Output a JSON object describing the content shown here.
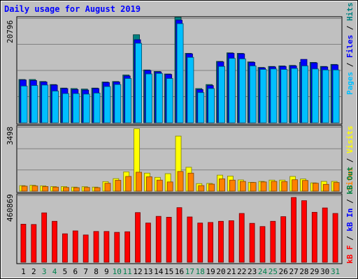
{
  "chart_data": [
    {
      "type": "bar",
      "title": "Daily usage for August 2019",
      "categories": [
        "1",
        "2",
        "3",
        "4",
        "5",
        "6",
        "7",
        "8",
        "9",
        "10",
        "11",
        "12",
        "13",
        "14",
        "15",
        "16",
        "17",
        "18",
        "19",
        "20",
        "21",
        "22",
        "23",
        "24",
        "25",
        "26",
        "27",
        "28",
        "29",
        "30",
        "31"
      ],
      "weekend_days": [
        "3",
        "4",
        "10",
        "11",
        "17",
        "18",
        "24",
        "25",
        "31"
      ],
      "y_max_label": "20796",
      "ylim": [
        0,
        20796
      ],
      "series": [
        {
          "name": "Hits",
          "color": "#008080",
          "values": [
            8600,
            8600,
            8200,
            7600,
            6900,
            6800,
            6700,
            6900,
            8100,
            8200,
            9500,
            17500,
            10500,
            10200,
            9700,
            21000,
            13800,
            6800,
            7600,
            12200,
            13900,
            13800,
            12100,
            11000,
            11200,
            11300,
            11400,
            12000,
            12000,
            11200,
            11600
          ]
        },
        {
          "name": "Files",
          "color": "#0000ff",
          "values": [
            8500,
            8400,
            8100,
            7500,
            6800,
            6600,
            6500,
            6800,
            8000,
            8100,
            9300,
            16500,
            10400,
            10100,
            9600,
            20400,
            13700,
            6600,
            7400,
            12100,
            13800,
            13700,
            12000,
            10900,
            11100,
            11200,
            11300,
            12600,
            11900,
            11100,
            11500
          ]
        },
        {
          "name": "Pages",
          "color": "#00bfff",
          "values": [
            7300,
            7400,
            7500,
            6300,
            5800,
            5800,
            5700,
            5900,
            7200,
            7600,
            8800,
            15800,
            9700,
            9800,
            8800,
            19700,
            13000,
            6000,
            6800,
            11200,
            12800,
            12700,
            11300,
            10600,
            10700,
            10600,
            10800,
            11300,
            10700,
            10500,
            10500
          ]
        }
      ]
    },
    {
      "type": "bar",
      "categories": [
        "1",
        "2",
        "3",
        "4",
        "5",
        "6",
        "7",
        "8",
        "9",
        "10",
        "11",
        "12",
        "13",
        "14",
        "15",
        "16",
        "17",
        "18",
        "19",
        "20",
        "21",
        "22",
        "23",
        "24",
        "25",
        "26",
        "27",
        "28",
        "29",
        "30",
        "31"
      ],
      "y_max_label": "3498",
      "ylim": [
        0,
        3498
      ],
      "series": [
        {
          "name": "Visits",
          "color": "#ffff00",
          "values": [
            300,
            320,
            290,
            250,
            250,
            220,
            240,
            220,
            520,
            680,
            1050,
            3400,
            980,
            750,
            950,
            3000,
            1300,
            410,
            420,
            870,
            820,
            610,
            480,
            530,
            600,
            600,
            800,
            660,
            450,
            530,
            530
          ]
        },
        {
          "name": "Sites",
          "color": "#ff8000",
          "values": [
            270,
            280,
            250,
            220,
            200,
            190,
            200,
            190,
            430,
            590,
            800,
            1030,
            780,
            600,
            500,
            1070,
            980,
            300,
            380,
            670,
            600,
            530,
            470,
            500,
            530,
            520,
            620,
            580,
            430,
            370,
            470
          ]
        }
      ]
    },
    {
      "type": "bar",
      "categories": [
        "1",
        "2",
        "3",
        "4",
        "5",
        "6",
        "7",
        "8",
        "9",
        "10",
        "11",
        "12",
        "13",
        "14",
        "15",
        "16",
        "17",
        "18",
        "19",
        "20",
        "21",
        "22",
        "23",
        "24",
        "25",
        "26",
        "27",
        "28",
        "29",
        "30",
        "31"
      ],
      "y_max_label": "460869",
      "ylim": [
        0,
        460869
      ],
      "series": [
        {
          "name": "KBytes",
          "color": "#ff0000",
          "values": [
            262000,
            260000,
            340000,
            282000,
            196000,
            216000,
            188000,
            212000,
            212000,
            206000,
            210000,
            342000,
            270000,
            316000,
            310000,
            376000,
            312000,
            270000,
            274000,
            282000,
            286000,
            336000,
            268000,
            246000,
            282000,
            314000,
            446000,
            424000,
            344000,
            374000,
            336000
          ]
        }
      ]
    }
  ],
  "legend_right": {
    "top": [
      {
        "text": "Pages",
        "color": "#00bfff"
      },
      {
        "text": " / ",
        "color": "#000000"
      },
      {
        "text": "Files",
        "color": "#0000ff"
      },
      {
        "text": " / ",
        "color": "#000000"
      },
      {
        "text": "Hits",
        "color": "#008080"
      }
    ],
    "middle": [
      {
        "text": "Sites",
        "color": "#ff8000"
      },
      {
        "text": " / ",
        "color": "#000000"
      },
      {
        "text": "Visits",
        "color": "#ffff00"
      }
    ],
    "bottom": [
      {
        "text": "kB F",
        "color": "#ff0000"
      },
      {
        "text": " / ",
        "color": "#000000"
      },
      {
        "text": "kB In",
        "color": "#0000ff"
      },
      {
        "text": " / ",
        "color": "#000000"
      },
      {
        "text": "kB Out",
        "color": "#008040"
      }
    ]
  },
  "colors": {
    "background": "#c0c0c0",
    "plot_bg": "#c0c0c0",
    "gridline": "#808080",
    "title": "#0000ff",
    "axis_label": "#000000",
    "weekend_label": "#00804d"
  }
}
